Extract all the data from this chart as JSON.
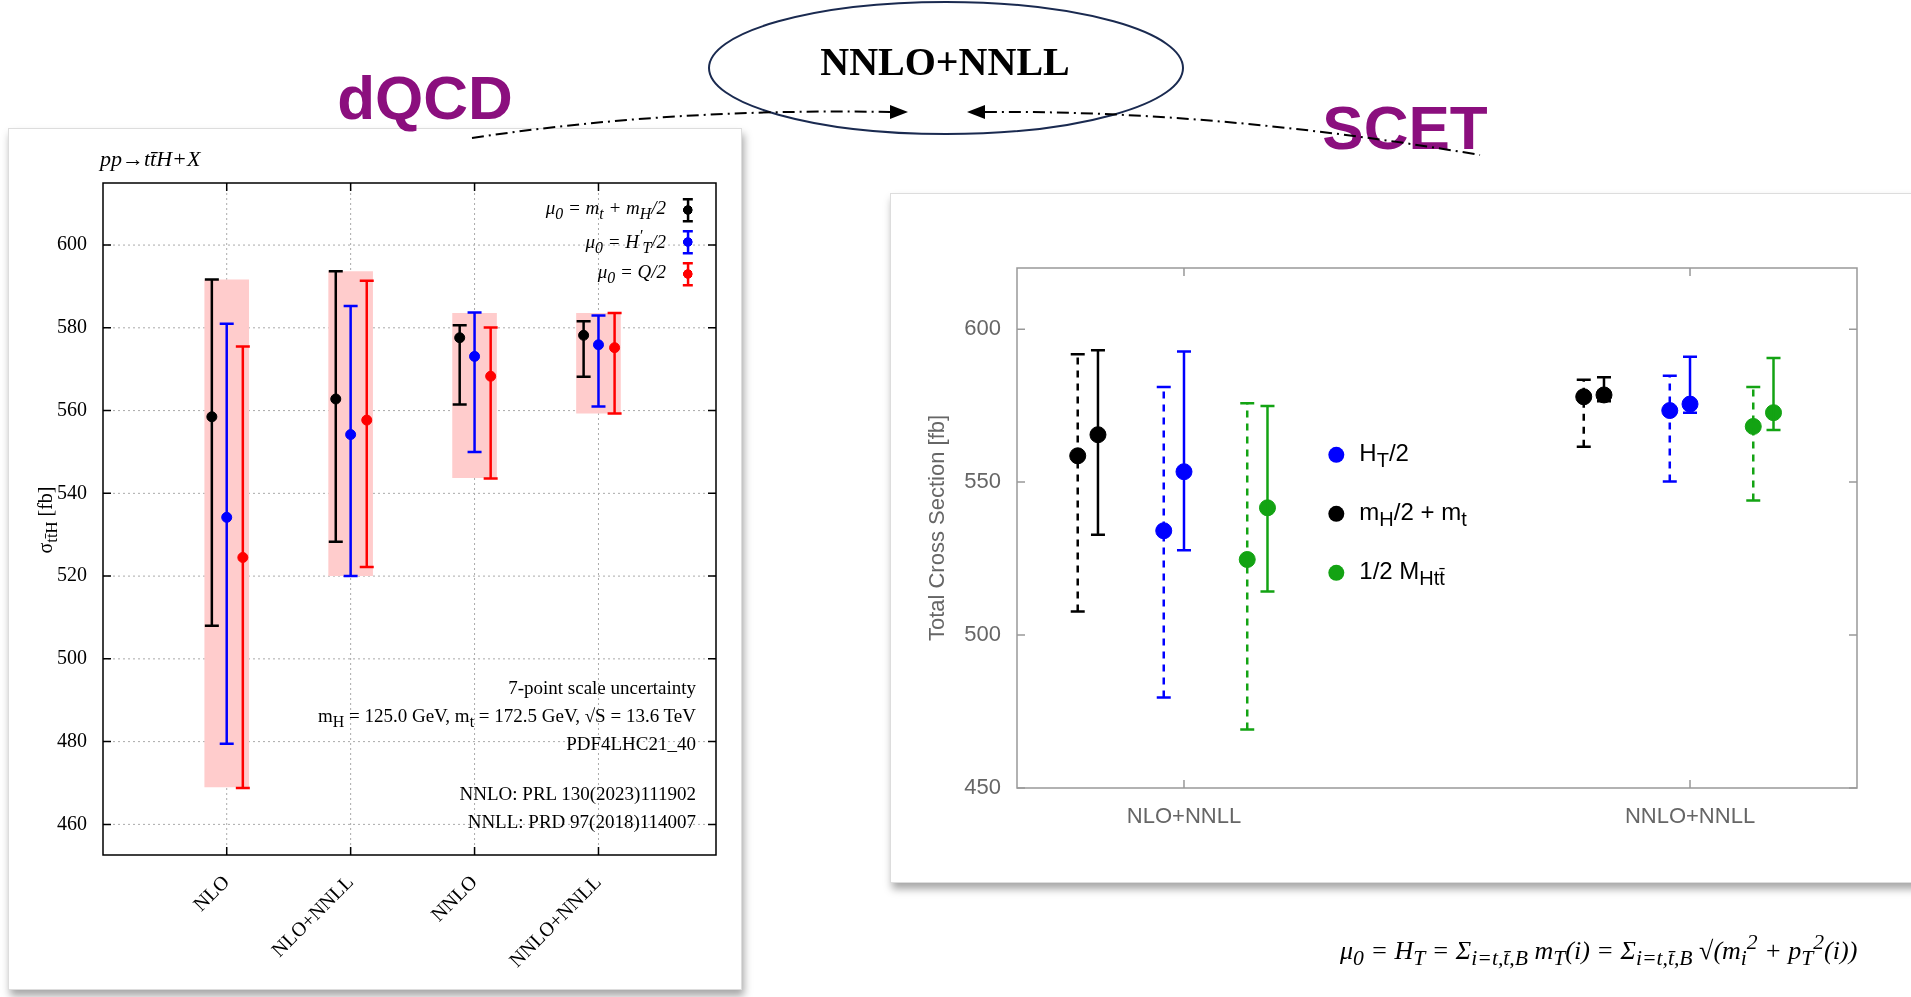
{
  "chart_data": [
    {
      "type": "scatter",
      "title": "dQCD",
      "subtitle": "pp→tt̄H+X",
      "ylabel": "σ$_{tt̄H}$ [fb]",
      "categories": [
        "NLO",
        "NLO+NNLL",
        "NNLO",
        "NNLO+NNLL"
      ],
      "ylim": [
        452.6,
        615
      ],
      "yticks": [
        460,
        480,
        500,
        520,
        540,
        560,
        580,
        600
      ],
      "grid": true,
      "legend": "top right",
      "marker": "circle",
      "series": [
        {
          "type": "bar",
          "color": "#ffcccc",
          "base": [
            469,
            520,
            543.7,
            559.3
          ],
          "values": [
            122.7,
            73.7,
            39.9,
            24.3
          ]
        },
        {
          "name": "μ$_{0}$ = m$_{t}$ + m$_{H}$/2",
          "color": "#000000",
          "values": [
            558.5,
            562.8,
            577.6,
            578.2
          ],
          "errors": [
            [
              508,
              591.7
            ],
            [
              528.3,
              593.7
            ],
            [
              561.5,
              580.6
            ],
            [
              568.2,
              581.6
            ]
          ]
        },
        {
          "name": "μ$_{0}$ = H$^{′}$$_{T}$/2",
          "color": "#0000ff",
          "values": [
            534.2,
            554.2,
            573.1,
            575.9
          ],
          "errors": [
            [
              479.5,
              581
            ],
            [
              520,
              585.3
            ],
            [
              550,
              583.7
            ],
            [
              561,
              583
            ]
          ]
        },
        {
          "name": "μ$_{0}$ = Q/2",
          "color": "#ff0000",
          "values": [
            524.5,
            557.7,
            568.3,
            575.2
          ],
          "errors": [
            [
              468.8,
              575.5
            ],
            [
              522.2,
              591.4
            ],
            [
              543.6,
              580.1
            ],
            [
              559.3,
              583.6
            ]
          ]
        }
      ],
      "annotations": [
        "7-point scale uncertainty",
        "m$_{H}$ = 125.0 GeV, m$_{t}$ = 172.5 GeV, √S = 13.6 TeV",
        "PDF4LHC21_40",
        "NNLO: PRL 130(2023)111902",
        "NNLL: PRD 97(2018)114007"
      ]
    },
    {
      "type": "scatter",
      "title": "SCET",
      "ylabel": "Total Cross Section [fb]",
      "categories": [
        "NLO+NNLL",
        "NNLO+NNLL"
      ],
      "ylim": [
        450,
        620
      ],
      "yticks": [
        450,
        500,
        550,
        600
      ],
      "legend": "center",
      "marker": "circle",
      "series": [
        {
          "name": "H$_{T}$/2",
          "color": "#0000ff",
          "line_style": "dashed",
          "values": [
            534.1,
            573.4
          ],
          "errors": [
            [
              479.6,
              581.1
            ],
            [
              550.2,
              584.8
            ]
          ]
        },
        {
          "color": "#0000ff",
          "line_style": "solid",
          "values": [
            553.4,
            575.5
          ],
          "errors": [
            [
              527.7,
              592.7
            ],
            [
              572.7,
              591
            ]
          ]
        },
        {
          "name": "m$_{H}$/2 + m$_{t}$",
          "color": "#000000",
          "line_style": "dashed",
          "values": [
            558.6,
            577.9
          ],
          "errors": [
            [
              507.7,
              591.8
            ],
            [
              561.6,
              583.5
            ]
          ]
        },
        {
          "color": "#000000",
          "line_style": "solid",
          "values": [
            565.5,
            578.5
          ],
          "errors": [
            [
              532.8,
              593.1
            ],
            [
              576.4,
              584.3
            ]
          ]
        },
        {
          "name": "1/2 M$_{Htt̄}$",
          "color": "#13a313",
          "line_style": "dashed",
          "values": [
            524.7,
            568.2
          ],
          "errors": [
            [
              469.1,
              575.8
            ],
            [
              544,
              581.1
            ]
          ]
        },
        {
          "color": "#13a313",
          "line_style": "solid",
          "values": [
            541.6,
            572.7
          ],
          "errors": [
            [
              514.2,
              574.9
            ],
            [
              567,
              590.6
            ]
          ]
        }
      ],
      "annotations": [
        "NNLO+NNLL",
        "μ$_{0}$ = H$_{T}$ = Σ$_{i=t,t̄,B}$ m$_{T}$(i) = Σ$_{i=t,t̄,B}$ √(m$_{i}$$^{2}$ + p$_{T}$$^{2}$(i))"
      ]
    }
  ]
}
